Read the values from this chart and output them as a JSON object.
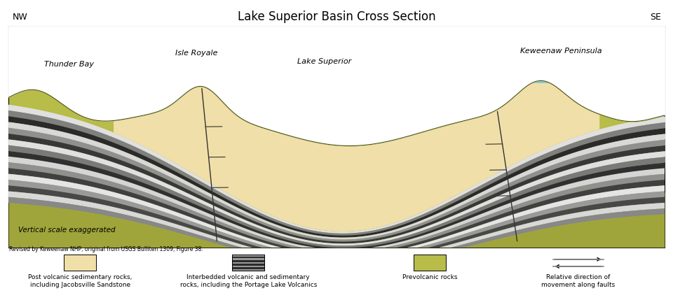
{
  "title": "Lake Superior Basin Cross Section",
  "nw_label": "NW",
  "se_label": "SE",
  "thunder_bay": "Thunder Bay",
  "isle_royale": "Isle Royale",
  "lake_superior": "Lake Superior",
  "keweenaw": "Keweenaw Peninsula",
  "annotation": "Vertical scale exaggerated",
  "citation": "Revised by Keweenaw NHP, original from USGS Bulliten 1309, Figure 38.",
  "legend1": "Post volcanic sedimentary rocks,\nincluding Jacobsville Sandstone",
  "legend2": "Interbedded volcanic and sedimentary\nrocks, including the Portage Lake Volcanics",
  "legend3": "Prevolcanic rocks",
  "legend4": "Relative direction of\nmovement along faults",
  "colors": {
    "bg": "#ffffff",
    "green_light": "#c8cc5a",
    "green_mid": "#adb040",
    "green_dark": "#8a9030",
    "sand": "#f0dfa8",
    "water": "#7ec8e3",
    "stripe_white": "#e8e8e8",
    "stripe_lgray": "#c0c0c0",
    "stripe_mgray": "#909090",
    "stripe_dgray": "#606060",
    "stripe_black": "#282828",
    "fault": "#333333"
  },
  "stripe_colors": [
    "#e0e0e0",
    "#808080",
    "#2a2a2a",
    "#d8d8d8",
    "#909090",
    "#383838",
    "#e0e0e0",
    "#7a7a7a",
    "#303030",
    "#d5d5d5",
    "#909090",
    "#404040",
    "#e5e5e5",
    "#9a9a9a",
    "#484848",
    "#d8d8d8",
    "#888888"
  ]
}
